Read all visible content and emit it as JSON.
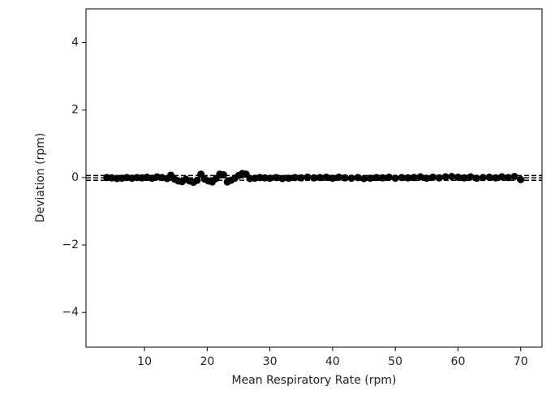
{
  "chart_data": {
    "type": "scatter",
    "xlabel": "Mean Respiratory Rate (rpm)",
    "ylabel": "Deviation (rpm)",
    "xlim": [
      0.67,
      73.4
    ],
    "ylim": [
      -5.03,
      5.0
    ],
    "xticks": [
      10,
      20,
      30,
      40,
      50,
      60,
      70
    ],
    "yticks": [
      {
        "value": -4,
        "label": "−4"
      },
      {
        "value": -2,
        "label": "−2"
      },
      0,
      2,
      4
    ],
    "color": "#000000",
    "reference_lines": [
      0.06,
      -0.01,
      -0.08
    ],
    "x": [
      4,
      4.8,
      5.6,
      6.4,
      7.2,
      8,
      8.8,
      9.6,
      10.4,
      11.2,
      12,
      12.8,
      13.6,
      14.2,
      14.8,
      15.4,
      16,
      16.6,
      17.2,
      17.8,
      18.4,
      19,
      19.6,
      20.2,
      20.8,
      21.4,
      22,
      22.6,
      23.2,
      23.8,
      24.4,
      25,
      25.6,
      26.2,
      26.8,
      27.6,
      28.4,
      29.2,
      30,
      31,
      32,
      33,
      34,
      35,
      36,
      37,
      38,
      39,
      40,
      41,
      42,
      43,
      44,
      45,
      46,
      47,
      48,
      49,
      50,
      51,
      52,
      53,
      54,
      55,
      56,
      57,
      58,
      59,
      60,
      61,
      62,
      63,
      64,
      65,
      66,
      67,
      68,
      69,
      70
    ],
    "y": [
      0,
      -0.01,
      -0.03,
      -0.02,
      0,
      -0.02,
      0,
      -0.01,
      0.01,
      -0.02,
      0.02,
      0,
      -0.03,
      0.07,
      -0.05,
      -0.1,
      -0.12,
      -0.05,
      -0.1,
      -0.14,
      -0.08,
      0.1,
      -0.05,
      -0.1,
      -0.13,
      -0.03,
      0.1,
      0.08,
      -0.13,
      -0.08,
      -0.02,
      0.06,
      0.12,
      0.1,
      -0.03,
      -0.02,
      0,
      -0.01,
      -0.02,
      0,
      -0.03,
      -0.02,
      0,
      -0.01,
      0.01,
      -0.01,
      0,
      0.01,
      -0.02,
      0.01,
      -0.01,
      -0.02,
      0,
      -0.03,
      -0.02,
      0,
      -0.01,
      0.01,
      -0.02,
      0,
      -0.01,
      0,
      0.02,
      -0.02,
      0.01,
      -0.01,
      0.02,
      0.03,
      0.01,
      -0.01,
      0.02,
      -0.02,
      0,
      0.01,
      -0.01,
      0.02,
      0,
      0.03,
      -0.06
    ]
  }
}
